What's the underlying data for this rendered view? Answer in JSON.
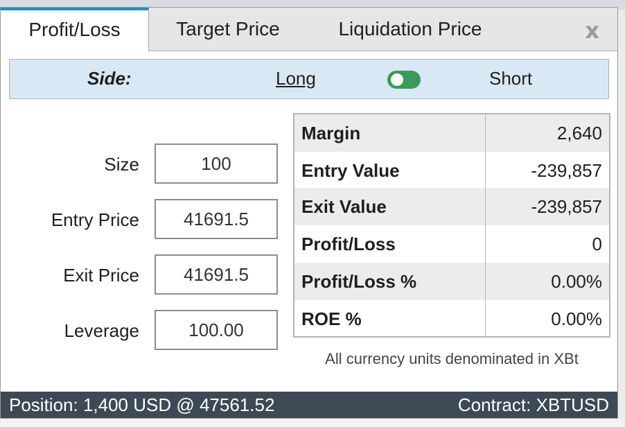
{
  "tabs": [
    {
      "label": "Profit/Loss",
      "active": true
    },
    {
      "label": "Target Price",
      "active": false
    },
    {
      "label": "Liquidation Price",
      "active": false
    }
  ],
  "close_label": "x",
  "side": {
    "label": "Side:",
    "long_label": "Long",
    "short_label": "Short",
    "toggle_state": "long"
  },
  "form": {
    "size": {
      "label": "Size",
      "value": "100"
    },
    "entry_price": {
      "label": "Entry Price",
      "value": "41691.5"
    },
    "exit_price": {
      "label": "Exit Price",
      "value": "41691.5"
    },
    "leverage": {
      "label": "Leverage",
      "value": "100.00"
    }
  },
  "results": [
    {
      "key": "Margin",
      "value": "2,640"
    },
    {
      "key": "Entry Value",
      "value": "-239,857"
    },
    {
      "key": "Exit Value",
      "value": "-239,857"
    },
    {
      "key": "Profit/Loss",
      "value": "0"
    },
    {
      "key": "Profit/Loss %",
      "value": "0.00%"
    },
    {
      "key": "ROE %",
      "value": "0.00%"
    }
  ],
  "note": "All currency units denominated in XBt",
  "footer": {
    "position": "Position: 1,400 USD @ 47561.52",
    "contract": "Contract: XBTUSD"
  },
  "colors": {
    "active_tab_accent": "#1b91c9",
    "side_bg": "#d8e8f4",
    "toggle_on": "#3a9a58",
    "footer_bg": "#3d4a55"
  }
}
